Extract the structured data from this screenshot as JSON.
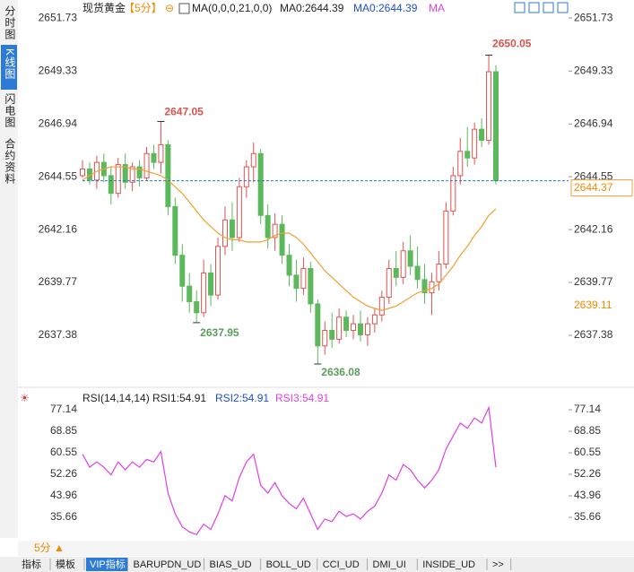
{
  "ui": {
    "tabs_left": [
      "分时图",
      "K线图",
      "闪电图",
      "合约资料"
    ],
    "symbol": "现货黄金",
    "period": "【5分】",
    "period_icon": "⊖",
    "ma_params": "MA(0,0,0,21,0,0)",
    "ma_value_1": "MA0:2644.39",
    "ma_value_2": "MA0:2644.39",
    "ma_tail": "MA",
    "rsi_params": "RSI(14,14,14)",
    "rsi1": "RSI1:54.91",
    "rsi2": "RSI2:54.91",
    "rsi3": "RSI3:54.91",
    "rsi_icon": "☀",
    "period_button": "5分 ▲",
    "bottom_tabs": [
      "指标",
      "模板",
      "VIP指标",
      "BARUPDN_UD",
      "BIAS_UD",
      "BOLL_UD",
      "CCI_UD",
      "DMI_UI",
      "INSIDE_UD",
      ">>"
    ]
  },
  "chart_data": [
    {
      "type": "candlestick",
      "up_color": "#e0524f",
      "down_color": "#5cb85c",
      "ma_color": "#f0a030",
      "last_color": "#1e78d0",
      "ylim": [
        2635.31,
        2652.14
      ],
      "yticks": [
        2651.73,
        2649.33,
        2646.94,
        2644.55,
        2642.16,
        2639.77,
        2637.38
      ],
      "ma_label": "2639.11",
      "open": [
        2644.6,
        2644.9,
        2644.4,
        2645.2,
        2644.6,
        2643.8,
        2645.1,
        2644.3,
        2645.0,
        2644.5,
        2645.6,
        2645.2,
        2646.0,
        2643.2,
        2641.0,
        2639.6,
        2638.9,
        2638.4,
        2640.2,
        2639.2,
        2641.4,
        2642.6,
        2641.8,
        2644.1,
        2645.0,
        2645.6,
        2642.8,
        2641.8,
        2642.4,
        2641.0,
        2640.1,
        2639.5,
        2640.4,
        2638.8,
        2636.9,
        2637.6,
        2637.2,
        2638.2,
        2637.6,
        2637.9,
        2637.4,
        2637.9,
        2638.3,
        2639.1,
        2640.4,
        2640.0,
        2641.2,
        2640.5,
        2639.9,
        2639.3,
        2639.8,
        2640.6,
        2643.0,
        2644.6,
        2645.7,
        2645.4,
        2646.7,
        2646.2,
        2649.3
      ],
      "high": [
        2645.3,
        2645.2,
        2645.5,
        2645.6,
        2645.0,
        2645.4,
        2645.6,
        2645.2,
        2645.3,
        2645.9,
        2646.0,
        2647.05,
        2646.2,
        2643.6,
        2641.5,
        2640.2,
        2639.4,
        2640.8,
        2640.6,
        2641.8,
        2643.2,
        2643.4,
        2644.5,
        2645.3,
        2646.1,
        2645.8,
        2643.3,
        2642.9,
        2642.8,
        2641.5,
        2640.8,
        2640.9,
        2640.7,
        2639.0,
        2638.0,
        2638.4,
        2638.6,
        2638.5,
        2638.3,
        2638.5,
        2638.2,
        2638.6,
        2639.4,
        2640.8,
        2641.2,
        2641.6,
        2641.9,
        2641.4,
        2640.6,
        2640.2,
        2641.2,
        2643.4,
        2645.0,
        2646.3,
        2646.8,
        2647.0,
        2647.2,
        2650.05,
        2649.6
      ],
      "low": [
        2644.5,
        2644.2,
        2644.0,
        2644.3,
        2643.3,
        2643.6,
        2644.0,
        2643.9,
        2644.1,
        2644.4,
        2644.9,
        2644.7,
        2642.8,
        2640.6,
        2638.9,
        2638.4,
        2637.95,
        2638.2,
        2638.7,
        2639.0,
        2641.0,
        2641.2,
        2641.6,
        2643.6,
        2644.3,
        2642.4,
        2641.3,
        2641.2,
        2640.6,
        2639.6,
        2638.9,
        2639.2,
        2638.4,
        2636.08,
        2636.5,
        2636.8,
        2637.0,
        2637.3,
        2637.2,
        2637.1,
        2636.9,
        2637.5,
        2638.0,
        2638.8,
        2639.6,
        2639.7,
        2640.1,
        2639.5,
        2638.8,
        2638.3,
        2639.4,
        2640.4,
        2642.8,
        2644.2,
        2645.0,
        2645.1,
        2645.9,
        2646.0,
        2644.2
      ],
      "close": [
        2644.9,
        2644.4,
        2645.2,
        2644.6,
        2643.8,
        2645.1,
        2644.3,
        2645.0,
        2644.5,
        2645.6,
        2645.2,
        2646.0,
        2643.2,
        2641.0,
        2639.6,
        2638.9,
        2638.4,
        2640.2,
        2639.2,
        2641.4,
        2642.6,
        2641.8,
        2644.1,
        2645.0,
        2645.6,
        2642.8,
        2641.8,
        2642.4,
        2641.0,
        2640.1,
        2639.5,
        2640.4,
        2638.8,
        2636.9,
        2637.6,
        2637.2,
        2638.2,
        2637.6,
        2637.9,
        2637.4,
        2637.9,
        2638.3,
        2639.1,
        2640.4,
        2640.0,
        2641.2,
        2640.5,
        2639.9,
        2639.3,
        2639.8,
        2640.6,
        2643.0,
        2644.6,
        2645.7,
        2645.4,
        2646.7,
        2646.2,
        2649.3,
        2644.37
      ],
      "ma_values": [
        2644.4,
        2644.6,
        2644.8,
        2644.9,
        2645.0,
        2645.0,
        2645.0,
        2644.9,
        2644.9,
        2644.8,
        2644.7,
        2644.6,
        2644.4,
        2644.1,
        2643.8,
        2643.4,
        2643.0,
        2642.6,
        2642.3,
        2642.0,
        2641.8,
        2641.7,
        2641.7,
        2641.6,
        2641.6,
        2641.6,
        2641.7,
        2641.9,
        2642.0,
        2642.0,
        2641.8,
        2641.5,
        2641.1,
        2640.7,
        2640.3,
        2640.0,
        2639.7,
        2639.4,
        2639.1,
        2638.9,
        2638.7,
        2638.6,
        2638.5,
        2638.6,
        2638.7,
        2638.9,
        2639.1,
        2639.3,
        2639.4,
        2639.5,
        2639.7,
        2640.1,
        2640.5,
        2641.0,
        2641.4,
        2641.9,
        2642.3,
        2642.8,
        2643.1
      ]
    },
    {
      "type": "line",
      "color": "#e040e0",
      "ylim": [
        27.71,
        83.02
      ],
      "yticks": [
        77.14,
        68.85,
        60.55,
        52.26,
        43.96,
        35.66
      ],
      "values": [
        60,
        55,
        57,
        55,
        52,
        57,
        54,
        57,
        55,
        58,
        57,
        61,
        45,
        37,
        32,
        30,
        29,
        33,
        31,
        37,
        44,
        42,
        51,
        57,
        60,
        48,
        45,
        49,
        44,
        41,
        39,
        43,
        37,
        31,
        35,
        34,
        38,
        36,
        37,
        35,
        38,
        40,
        45,
        52,
        50,
        56,
        54,
        50,
        47,
        50,
        54,
        62,
        67,
        72,
        70,
        74,
        72,
        78,
        54.91
      ]
    }
  ]
}
